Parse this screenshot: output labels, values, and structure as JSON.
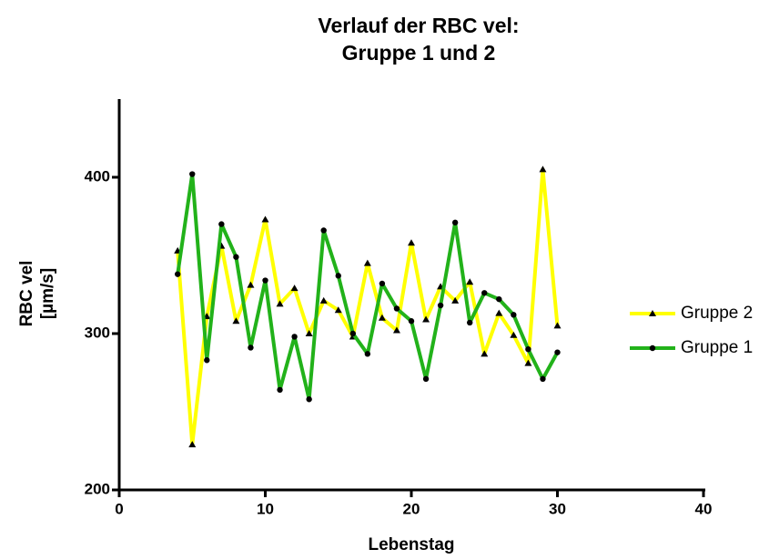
{
  "chart_data": {
    "type": "line",
    "title": [
      "Verlauf der RBC vel:",
      "Gruppe 1 und 2"
    ],
    "x_label": "Lebenstag",
    "y_label": [
      "RBC vel",
      "[µm/s]"
    ],
    "x": [
      4,
      5,
      6,
      7,
      8,
      9,
      10,
      11,
      12,
      13,
      14,
      15,
      16,
      17,
      18,
      19,
      20,
      21,
      22,
      23,
      24,
      25,
      26,
      27,
      28,
      29,
      30
    ],
    "series": [
      {
        "name": "Gruppe 2",
        "color": "#ffff00",
        "marker": "triangle",
        "values": [
          353,
          229,
          311,
          356,
          308,
          331,
          373,
          319,
          329,
          300,
          321,
          315,
          298,
          345,
          310,
          302,
          358,
          309,
          330,
          321,
          333,
          287,
          313,
          299,
          281,
          405,
          305
        ]
      },
      {
        "name": "Gruppe 1",
        "color": "#22b21a",
        "marker": "circle",
        "values": [
          338,
          402,
          283,
          370,
          349,
          291,
          334,
          264,
          298,
          258,
          366,
          337,
          300,
          287,
          332,
          316,
          308,
          271,
          318,
          371,
          307,
          326,
          322,
          312,
          290,
          271,
          288
        ]
      }
    ],
    "xlim": [
      0,
      40
    ],
    "xticks": [
      0,
      10,
      20,
      30,
      40
    ],
    "ylim": [
      200,
      450
    ],
    "yticks": [
      200,
      300,
      400
    ]
  }
}
